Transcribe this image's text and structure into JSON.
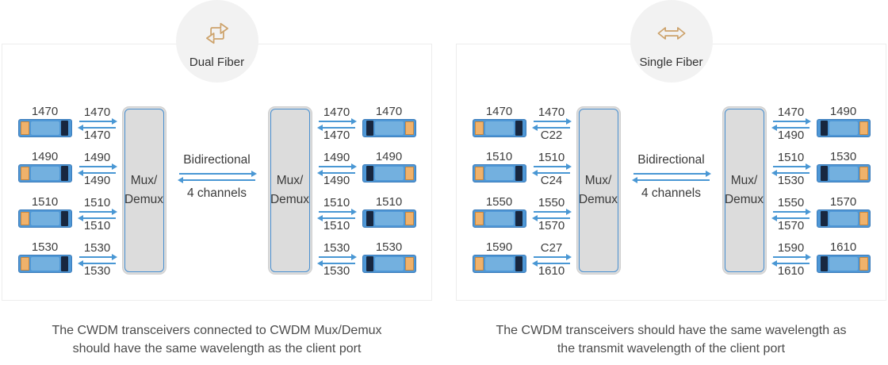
{
  "panels": [
    {
      "badge": {
        "label": "Dual Fiber",
        "icon": "dual-fiber-swap-arrows-icon"
      },
      "mux_label": [
        "Mux/",
        "Demux"
      ],
      "trunk": {
        "label_top": "Bidirectional",
        "label_bottom": "4 channels"
      },
      "left_clients": [
        {
          "device": "1470",
          "tx": "1470",
          "rx": "1470"
        },
        {
          "device": "1490",
          "tx": "1490",
          "rx": "1490"
        },
        {
          "device": "1510",
          "tx": "1510",
          "rx": "1510"
        },
        {
          "device": "1530",
          "tx": "1530",
          "rx": "1530"
        }
      ],
      "right_clients": [
        {
          "device": "1470",
          "tx": "1470",
          "rx": "1470"
        },
        {
          "device": "1490",
          "tx": "1490",
          "rx": "1490"
        },
        {
          "device": "1510",
          "tx": "1510",
          "rx": "1510"
        },
        {
          "device": "1530",
          "tx": "1530",
          "rx": "1530"
        }
      ],
      "caption": "The CWDM transceivers connected to CWDM Mux/Demux should have the same wavelength as the client port"
    },
    {
      "badge": {
        "label": "Single Fiber",
        "icon": "single-fiber-double-arrow-icon"
      },
      "mux_label": [
        "Mux/",
        "Demux"
      ],
      "trunk": {
        "label_top": "Bidirectional",
        "label_bottom": "4 channels"
      },
      "left_clients": [
        {
          "device": "1470",
          "tx": "1470",
          "rx": "C22"
        },
        {
          "device": "1510",
          "tx": "1510",
          "rx": "C24"
        },
        {
          "device": "1550",
          "tx": "1550",
          "rx": "1570"
        },
        {
          "device": "1590",
          "tx": "C27",
          "rx": "1610"
        }
      ],
      "right_clients": [
        {
          "device": "1490",
          "tx": "1470",
          "rx": "1490"
        },
        {
          "device": "1530",
          "tx": "1510",
          "rx": "1530"
        },
        {
          "device": "1570",
          "tx": "1550",
          "rx": "1570"
        },
        {
          "device": "1610",
          "tx": "1590",
          "rx": "1610"
        }
      ],
      "caption": "The CWDM transceivers should have the same wavelength as the transmit wavelength of the client port"
    }
  ],
  "colors": {
    "arrow_blue": "#4997d4",
    "mux_fill": "#dcdcdc",
    "mux_border_blue": "#4a90d0",
    "transceiver_blue": "#4e97d6",
    "transceiver_body_blue": "#73b0df",
    "transceiver_plug_navy": "#18273f",
    "transceiver_latch_orange": "#f0b26b",
    "badge_background": "#f2f2f2",
    "icon_tan": "#cda36c",
    "panel_border": "#ededed",
    "label_text": "#3d3d3d",
    "caption_text": "#4b4b4b"
  }
}
